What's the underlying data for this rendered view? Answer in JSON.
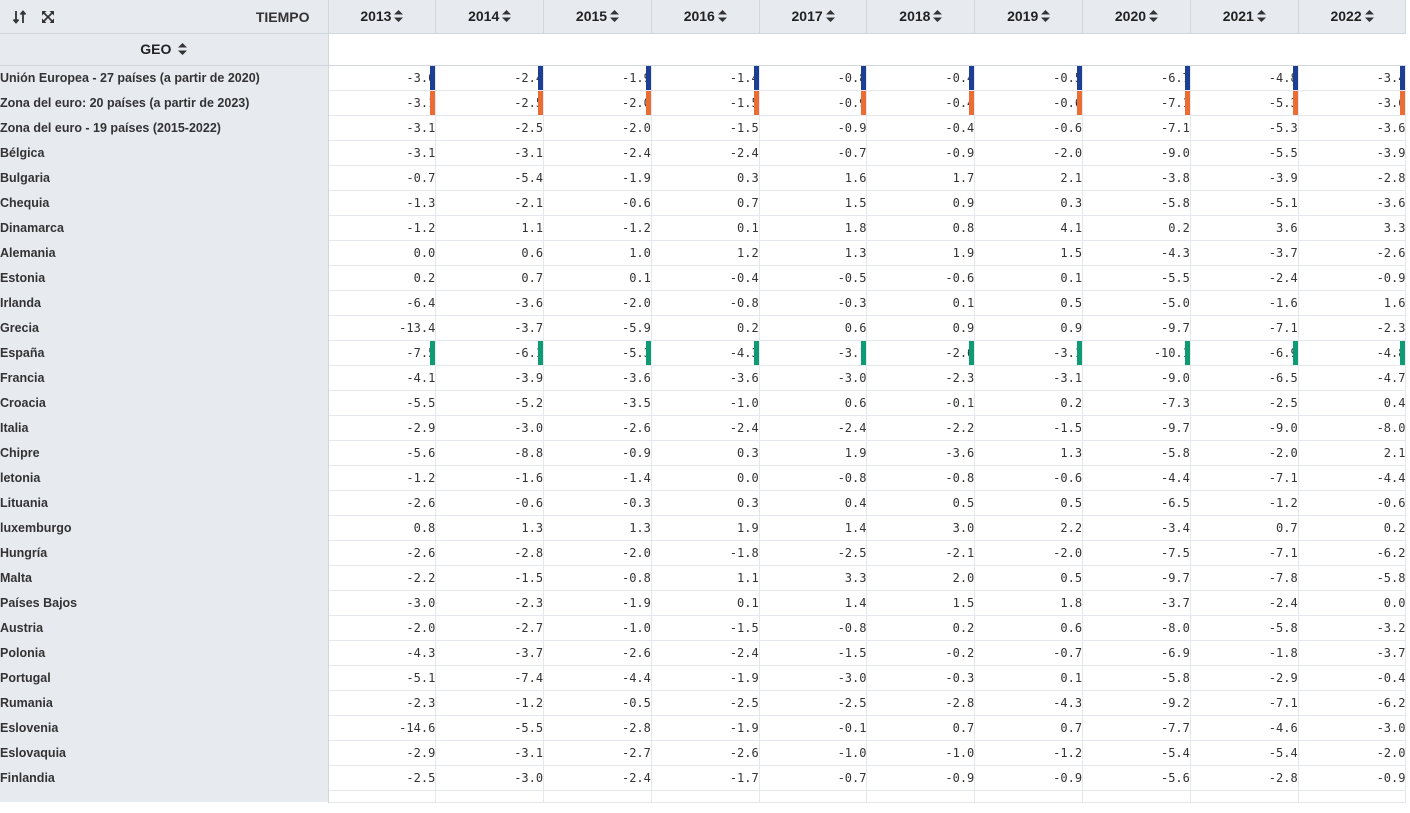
{
  "header": {
    "time_label": "TIEMPO",
    "geo_label": "GEO",
    "years": [
      "2013",
      "2014",
      "2015",
      "2016",
      "2017",
      "2018",
      "2019",
      "2020",
      "2021",
      "2022"
    ]
  },
  "toolbar": {
    "sort_icon": "sort-swap-icon",
    "expand_icon": "expand-arrows-icon"
  },
  "highlight_colors": {
    "blue": "#1c3f94",
    "orange": "#ec6d33",
    "green": "#0e9a72"
  },
  "rows": [
    {
      "geo": "Unión Europea - 27 países (a partir de 2020)",
      "highlight": "blue",
      "values": [
        "-3.0",
        "-2.4",
        "-1.9",
        "-1.4",
        "-0.8",
        "-0.4",
        "-0.5",
        "-6.7",
        "-4.8",
        "-3.4"
      ]
    },
    {
      "geo": "Zona del euro: 20 países (a partir de 2023)",
      "highlight": "orange",
      "values": [
        "-3.1",
        "-2.5",
        "-2.0",
        "-1.5",
        "-0.9",
        "-0.4",
        "-0.6",
        "-7.1",
        "-5.3",
        "-3.6"
      ]
    },
    {
      "geo": "Zona del euro - 19 países (2015-2022)",
      "values": [
        "-3.1",
        "-2.5",
        "-2.0",
        "-1.5",
        "-0.9",
        "-0.4",
        "-0.6",
        "-7.1",
        "-5.3",
        "-3.6"
      ]
    },
    {
      "geo": "Bélgica",
      "values": [
        "-3.1",
        "-3.1",
        "-2.4",
        "-2.4",
        "-0.7",
        "-0.9",
        "-2.0",
        "-9.0",
        "-5.5",
        "-3.9"
      ]
    },
    {
      "geo": "Bulgaria",
      "values": [
        "-0.7",
        "-5.4",
        "-1.9",
        "0.3",
        "1.6",
        "1.7",
        "2.1",
        "-3.8",
        "-3.9",
        "-2.8"
      ]
    },
    {
      "geo": "Chequia",
      "values": [
        "-1.3",
        "-2.1",
        "-0.6",
        "0.7",
        "1.5",
        "0.9",
        "0.3",
        "-5.8",
        "-5.1",
        "-3.6"
      ]
    },
    {
      "geo": "Dinamarca",
      "values": [
        "-1.2",
        "1.1",
        "-1.2",
        "0.1",
        "1.8",
        "0.8",
        "4.1",
        "0.2",
        "3.6",
        "3.3"
      ]
    },
    {
      "geo": "Alemania",
      "values": [
        "0.0",
        "0.6",
        "1.0",
        "1.2",
        "1.3",
        "1.9",
        "1.5",
        "-4.3",
        "-3.7",
        "-2.6"
      ]
    },
    {
      "geo": "Estonia",
      "values": [
        "0.2",
        "0.7",
        "0.1",
        "-0.4",
        "-0.5",
        "-0.6",
        "0.1",
        "-5.5",
        "-2.4",
        "-0.9"
      ]
    },
    {
      "geo": "Irlanda",
      "values": [
        "-6.4",
        "-3.6",
        "-2.0",
        "-0.8",
        "-0.3",
        "0.1",
        "0.5",
        "-5.0",
        "-1.6",
        "1.6"
      ]
    },
    {
      "geo": "Grecia",
      "values": [
        "-13.4",
        "-3.7",
        "-5.9",
        "0.2",
        "0.6",
        "0.9",
        "0.9",
        "-9.7",
        "-7.1",
        "-2.3"
      ]
    },
    {
      "geo": "España",
      "highlight": "green",
      "values": [
        "-7.5",
        "-6.1",
        "-5.3",
        "-4.3",
        "-3.1",
        "-2.6",
        "-3.1",
        "-10.1",
        "-6.9",
        "-4.8"
      ]
    },
    {
      "geo": "Francia",
      "values": [
        "-4.1",
        "-3.9",
        "-3.6",
        "-3.6",
        "-3.0",
        "-2.3",
        "-3.1",
        "-9.0",
        "-6.5",
        "-4.7"
      ]
    },
    {
      "geo": "Croacia",
      "values": [
        "-5.5",
        "-5.2",
        "-3.5",
        "-1.0",
        "0.6",
        "-0.1",
        "0.2",
        "-7.3",
        "-2.5",
        "0.4"
      ]
    },
    {
      "geo": "Italia",
      "values": [
        "-2.9",
        "-3.0",
        "-2.6",
        "-2.4",
        "-2.4",
        "-2.2",
        "-1.5",
        "-9.7",
        "-9.0",
        "-8.0"
      ]
    },
    {
      "geo": "Chipre",
      "values": [
        "-5.6",
        "-8.8",
        "-0.9",
        "0.3",
        "1.9",
        "-3.6",
        "1.3",
        "-5.8",
        "-2.0",
        "2.1"
      ]
    },
    {
      "geo": "letonia",
      "values": [
        "-1.2",
        "-1.6",
        "-1.4",
        "0.0",
        "-0.8",
        "-0.8",
        "-0.6",
        "-4.4",
        "-7.1",
        "-4.4"
      ]
    },
    {
      "geo": "Lituania",
      "values": [
        "-2.6",
        "-0.6",
        "-0.3",
        "0.3",
        "0.4",
        "0.5",
        "0.5",
        "-6.5",
        "-1.2",
        "-0.6"
      ]
    },
    {
      "geo": "luxemburgo",
      "values": [
        "0.8",
        "1.3",
        "1.3",
        "1.9",
        "1.4",
        "3.0",
        "2.2",
        "-3.4",
        "0.7",
        "0.2"
      ]
    },
    {
      "geo": "Hungría",
      "values": [
        "-2.6",
        "-2.8",
        "-2.0",
        "-1.8",
        "-2.5",
        "-2.1",
        "-2.0",
        "-7.5",
        "-7.1",
        "-6.2"
      ]
    },
    {
      "geo": "Malta",
      "values": [
        "-2.2",
        "-1.5",
        "-0.8",
        "1.1",
        "3.3",
        "2.0",
        "0.5",
        "-9.7",
        "-7.8",
        "-5.8"
      ]
    },
    {
      "geo": "Países Bajos",
      "values": [
        "-3.0",
        "-2.3",
        "-1.9",
        "0.1",
        "1.4",
        "1.5",
        "1.8",
        "-3.7",
        "-2.4",
        "0.0"
      ]
    },
    {
      "geo": "Austria",
      "values": [
        "-2.0",
        "-2.7",
        "-1.0",
        "-1.5",
        "-0.8",
        "0.2",
        "0.6",
        "-8.0",
        "-5.8",
        "-3.2"
      ]
    },
    {
      "geo": "Polonia",
      "values": [
        "-4.3",
        "-3.7",
        "-2.6",
        "-2.4",
        "-1.5",
        "-0.2",
        "-0.7",
        "-6.9",
        "-1.8",
        "-3.7"
      ]
    },
    {
      "geo": "Portugal",
      "values": [
        "-5.1",
        "-7.4",
        "-4.4",
        "-1.9",
        "-3.0",
        "-0.3",
        "0.1",
        "-5.8",
        "-2.9",
        "-0.4"
      ]
    },
    {
      "geo": "Rumania",
      "values": [
        "-2.3",
        "-1.2",
        "-0.5",
        "-2.5",
        "-2.5",
        "-2.8",
        "-4.3",
        "-9.2",
        "-7.1",
        "-6.2"
      ]
    },
    {
      "geo": "Eslovenia",
      "values": [
        "-14.6",
        "-5.5",
        "-2.8",
        "-1.9",
        "-0.1",
        "0.7",
        "0.7",
        "-7.7",
        "-4.6",
        "-3.0"
      ]
    },
    {
      "geo": "Eslovaquia",
      "values": [
        "-2.9",
        "-3.1",
        "-2.7",
        "-2.6",
        "-1.0",
        "-1.0",
        "-1.2",
        "-5.4",
        "-5.4",
        "-2.0"
      ]
    },
    {
      "geo": "Finlandia",
      "values": [
        "-2.5",
        "-3.0",
        "-2.4",
        "-1.7",
        "-0.7",
        "-0.9",
        "-0.9",
        "-5.6",
        "-2.8",
        "-0.9"
      ]
    }
  ]
}
